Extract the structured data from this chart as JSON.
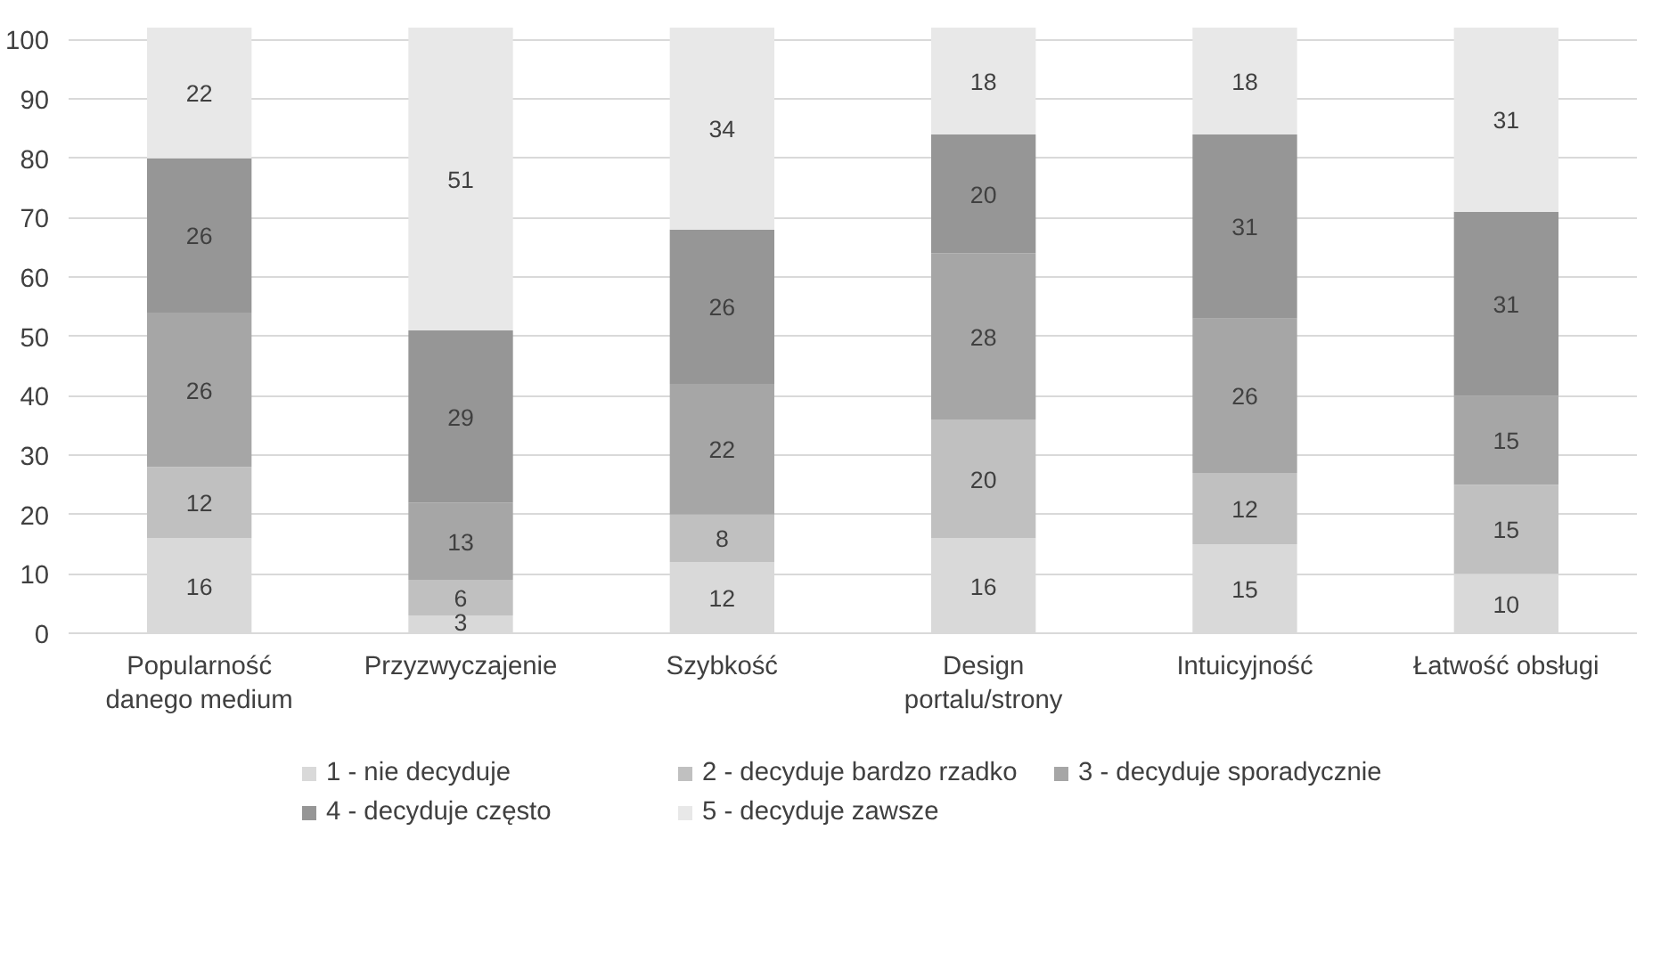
{
  "chart_data": {
    "type": "bar",
    "stacked": true,
    "categories": [
      "Popularność\ndanego medium",
      "Przyzwyczajenie",
      "Szybkość",
      "Design\nportalu/strony",
      "Intuicyjność",
      "Łatwość obsługi"
    ],
    "series": [
      {
        "name": "1 - nie decyduje",
        "color": "#d9d9d9",
        "values": [
          16,
          3,
          12,
          16,
          15,
          10
        ]
      },
      {
        "name": "2 - decyduje bardzo rzadko",
        "color": "#c0c0c0",
        "values": [
          12,
          6,
          8,
          20,
          12,
          15
        ]
      },
      {
        "name": "3 - decyduje sporadycznie",
        "color": "#a6a6a6",
        "values": [
          26,
          13,
          22,
          28,
          26,
          15
        ]
      },
      {
        "name": "4 - decyduje często",
        "color": "#969696",
        "values": [
          26,
          29,
          26,
          20,
          31,
          31
        ]
      },
      {
        "name": "5 - decyduje zawsze",
        "color": "#e8e8e8",
        "values": [
          22,
          51,
          34,
          18,
          18,
          31
        ]
      }
    ],
    "ylim": [
      0,
      102
    ],
    "yticks": [
      0,
      10,
      20,
      30,
      40,
      50,
      60,
      70,
      80,
      90,
      100
    ],
    "grid": "y",
    "data_labels": true,
    "legend": "bottom"
  }
}
